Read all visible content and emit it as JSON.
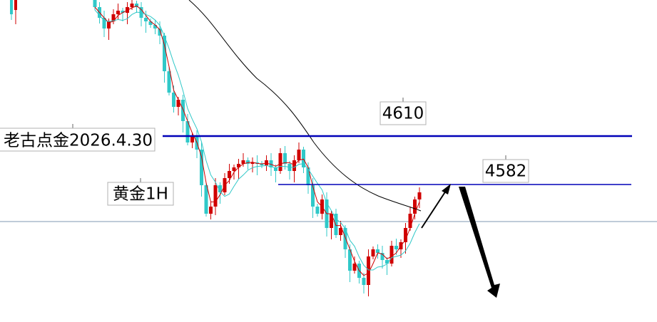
{
  "annotations": {
    "level_high": "4610",
    "level_low": "4582",
    "author": "老古点金2026.4.30",
    "symbol": "黄金1H"
  }
}
